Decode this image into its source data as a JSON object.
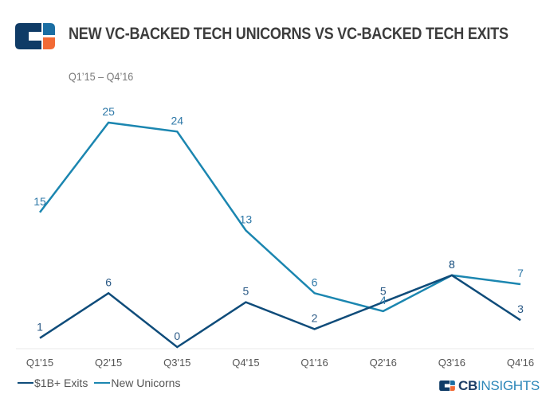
{
  "header": {
    "title": "NEW VC-BACKED TECH UNICORNS VS VC-BACKED TECH EXITS",
    "subtitle": "Q1’15 – Q4’16",
    "logo": "cb-insights-logo-icon"
  },
  "colors": {
    "exits": "#0f4c7a",
    "unicorns": "#1b86b0",
    "label_exits": "#2b5a86",
    "label_unicorns": "#2f79a8",
    "axis": "#e8e8e8",
    "tick_label": "#555555",
    "logo_navy": "#0f3b66",
    "logo_blue": "#1b6ea3",
    "logo_orange": "#f26a35"
  },
  "chart_data": {
    "type": "line",
    "title": "NEW VC-BACKED TECH UNICORNS VS VC-BACKED TECH EXITS",
    "subtitle": "Q1’15 – Q4’16",
    "categories": [
      "Q1'15",
      "Q2'15",
      "Q3'15",
      "Q4'15",
      "Q1'16",
      "Q2'16",
      "Q3'16",
      "Q4'16"
    ],
    "series": [
      {
        "name": "$1B+ Exits",
        "values": [
          1,
          6,
          0,
          5,
          2,
          5,
          8,
          3
        ]
      },
      {
        "name": "New Unicorns",
        "values": [
          15,
          25,
          24,
          13,
          6,
          4,
          8,
          7
        ]
      }
    ],
    "xlabel": "",
    "ylabel": "",
    "ylim": [
      0,
      25
    ],
    "grid": false,
    "data_labels": true,
    "legend": "bottom-left"
  },
  "legend": {
    "items": [
      {
        "label": "$1B+ Exits"
      },
      {
        "label": "New Unicorns"
      }
    ]
  },
  "branding": {
    "cb": "CB",
    "insights": "INSIGHTS"
  }
}
